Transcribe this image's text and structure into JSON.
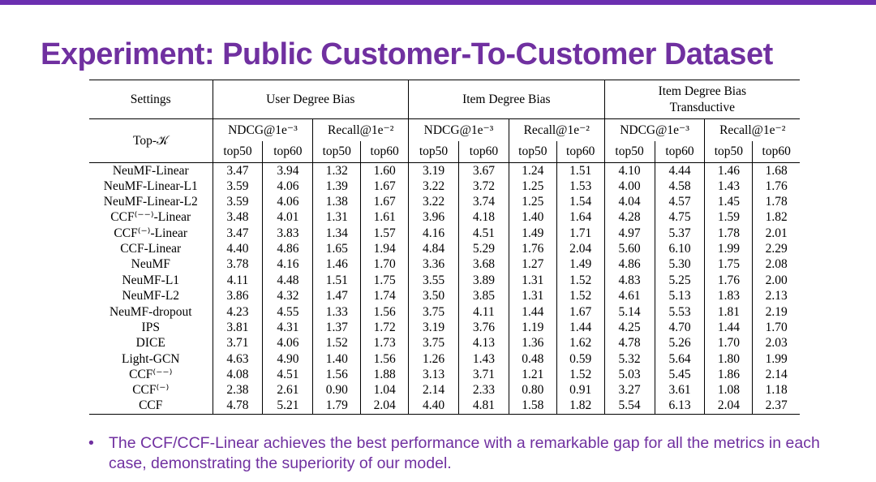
{
  "slide": {
    "title": "Experiment: Public Customer-To-Customer Dataset",
    "accent_color": "#7030a0",
    "bullet_marker": "•",
    "bullet_text": "The CCF/CCF-Linear achieves the best performance with a remarkable gap for all the metrics in each case, demonstrating the superiority of our model."
  },
  "table": {
    "settings_label": "Settings",
    "topk_label": "Top-𝒦",
    "groups": [
      "User Degree Bias",
      "Item Degree Bias",
      "Item Degree Bias\nTransductive"
    ],
    "metrics": [
      "NDCG@1e⁻³",
      "Recall@1e⁻²",
      "NDCG@1e⁻³",
      "Recall@1e⁻²",
      "NDCG@1e⁻³",
      "Recall@1e⁻²"
    ],
    "ks": [
      "top50",
      "top60",
      "top50",
      "top60",
      "top50",
      "top60",
      "top50",
      "top60",
      "top50",
      "top60",
      "top50",
      "top60"
    ],
    "rows": [
      {
        "name": "NeuMF-Linear",
        "bold": false,
        "values": [
          "3.47",
          "3.94",
          "1.32",
          "1.60",
          "3.19",
          "3.67",
          "1.24",
          "1.51",
          "4.10",
          "4.44",
          "1.46",
          "1.68"
        ]
      },
      {
        "name": "NeuMF-Linear-L1",
        "bold": false,
        "values": [
          "3.59",
          "4.06",
          "1.39",
          "1.67",
          "3.22",
          "3.72",
          "1.25",
          "1.53",
          "4.00",
          "4.58",
          "1.43",
          "1.76"
        ]
      },
      {
        "name": "NeuMF-Linear-L2",
        "bold": false,
        "values": [
          "3.59",
          "4.06",
          "1.38",
          "1.67",
          "3.22",
          "3.74",
          "1.25",
          "1.54",
          "4.04",
          "4.57",
          "1.45",
          "1.78"
        ]
      },
      {
        "name": "CCF⁽⁻⁻⁾-Linear",
        "bold": false,
        "values": [
          "3.48",
          "4.01",
          "1.31",
          "1.61",
          "3.96",
          "4.18",
          "1.40",
          "1.64",
          "4.28",
          "4.75",
          "1.59",
          "1.82"
        ]
      },
      {
        "name": "CCF⁽⁻⁾-Linear",
        "bold": false,
        "values": [
          "3.47",
          "3.83",
          "1.34",
          "1.57",
          "4.16",
          "4.51",
          "1.49",
          "1.71",
          "4.97",
          "5.37",
          "1.78",
          "2.01"
        ]
      },
      {
        "name": "CCF-Linear",
        "bold": true,
        "values": [
          "4.40",
          "4.86",
          "1.65",
          "1.94",
          "4.84",
          "5.29",
          "1.76",
          "2.04",
          "5.60",
          "6.10",
          "1.99",
          "2.29"
        ]
      },
      {
        "name": "NeuMF",
        "bold": false,
        "values": [
          "3.78",
          "4.16",
          "1.46",
          "1.70",
          "3.36",
          "3.68",
          "1.27",
          "1.49",
          "4.86",
          "5.30",
          "1.75",
          "2.08"
        ]
      },
      {
        "name": "NeuMF-L1",
        "bold": false,
        "values": [
          "4.11",
          "4.48",
          "1.51",
          "1.75",
          "3.55",
          "3.89",
          "1.31",
          "1.52",
          "4.83",
          "5.25",
          "1.76",
          "2.00"
        ]
      },
      {
        "name": "NeuMF-L2",
        "bold": false,
        "values": [
          "3.86",
          "4.32",
          "1.47",
          "1.74",
          "3.50",
          "3.85",
          "1.31",
          "1.52",
          "4.61",
          "5.13",
          "1.83",
          "2.13"
        ]
      },
      {
        "name": "NeuMF-dropout",
        "bold": false,
        "values": [
          "4.23",
          "4.55",
          "1.33",
          "1.56",
          "3.75",
          "4.11",
          "1.44",
          "1.67",
          "5.14",
          "5.53",
          "1.81",
          "2.19"
        ]
      },
      {
        "name": "IPS",
        "bold": false,
        "values": [
          "3.81",
          "4.31",
          "1.37",
          "1.72",
          "3.19",
          "3.76",
          "1.19",
          "1.44",
          "4.25",
          "4.70",
          "1.44",
          "1.70"
        ]
      },
      {
        "name": "DICE",
        "bold": false,
        "values": [
          "3.71",
          "4.06",
          "1.52",
          "1.73",
          "3.75",
          "4.13",
          "1.36",
          "1.62",
          "4.78",
          "5.26",
          "1.70",
          "2.03"
        ]
      },
      {
        "name": "Light-GCN",
        "bold": false,
        "values": [
          "4.63",
          "4.90",
          "1.40",
          "1.56",
          "1.26",
          "1.43",
          "0.48",
          "0.59",
          "5.32",
          "5.64",
          "1.80",
          "1.99"
        ]
      },
      {
        "name": "CCF⁽⁻⁻⁾",
        "bold": false,
        "values": [
          "4.08",
          "4.51",
          "1.56",
          "1.88",
          "3.13",
          "3.71",
          "1.21",
          "1.52",
          "5.03",
          "5.45",
          "1.86",
          "2.14"
        ]
      },
      {
        "name": "CCF⁽⁻⁾",
        "bold": false,
        "values": [
          "2.38",
          "2.61",
          "0.90",
          "1.04",
          "2.14",
          "2.33",
          "0.80",
          "0.91",
          "3.27",
          "3.61",
          "1.08",
          "1.18"
        ]
      },
      {
        "name": "CCF",
        "bold": true,
        "values": [
          "4.78",
          "5.21",
          "1.79",
          "2.04",
          "4.40",
          "4.81",
          "1.58",
          "1.82",
          "5.54",
          "6.13",
          "2.04",
          "2.37"
        ]
      }
    ]
  }
}
